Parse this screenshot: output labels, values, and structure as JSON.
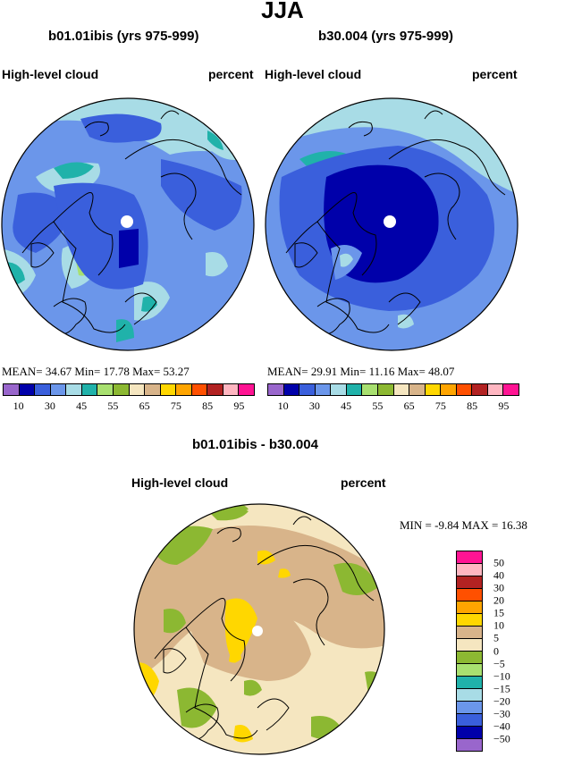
{
  "page": {
    "season": "JJA"
  },
  "panels": [
    {
      "title": "b01.01ibis (yrs 975-999)",
      "field": "High-level cloud",
      "units": "percent",
      "mean_label": "MEAN=",
      "mean": "34.67",
      "min_label": "Min=",
      "min": "17.78",
      "max_label": "Max=",
      "max": "53.27"
    },
    {
      "title": "b30.004 (yrs 975-999)",
      "field": "High-level cloud",
      "units": "percent",
      "mean_label": "MEAN=",
      "mean": "29.91",
      "min_label": "Min=",
      "min": "11.16",
      "max_label": "Max=",
      "max": "48.07"
    }
  ],
  "colorbar": {
    "colors": [
      "#9966cc",
      "#0000aa",
      "#3a5fdc",
      "#6b96ea",
      "#a8dce6",
      "#20b2aa",
      "#a8e070",
      "#8cb832",
      "#f5e6c0",
      "#d8b48a",
      "#ffd700",
      "#ffa500",
      "#ff5000",
      "#b22222",
      "#ffb6c1",
      "#ff1493"
    ],
    "tick_labels": [
      "10",
      "30",
      "45",
      "55",
      "65",
      "75",
      "85",
      "95"
    ]
  },
  "diff": {
    "title": "b01.01ibis - b30.004",
    "field": "High-level cloud",
    "units": "percent",
    "min_label": "MIN =",
    "min": "-9.84",
    "max_label": "MAX =",
    "max": "16.38",
    "colorbar_colors": [
      "#ff1493",
      "#ffb6c1",
      "#b22222",
      "#ff5000",
      "#ffa500",
      "#ffd700",
      "#d8b48a",
      "#f5e6c0",
      "#8cb832",
      "#a8e070",
      "#20b2aa",
      "#a8dce6",
      "#6b96ea",
      "#3a5fdc",
      "#0000aa",
      "#9966cc"
    ],
    "tick_labels": [
      "50",
      "40",
      "30",
      "20",
      "15",
      "10",
      "5",
      "0",
      "−5",
      "−10",
      "−15",
      "−20",
      "−30",
      "−40",
      "−50"
    ]
  }
}
